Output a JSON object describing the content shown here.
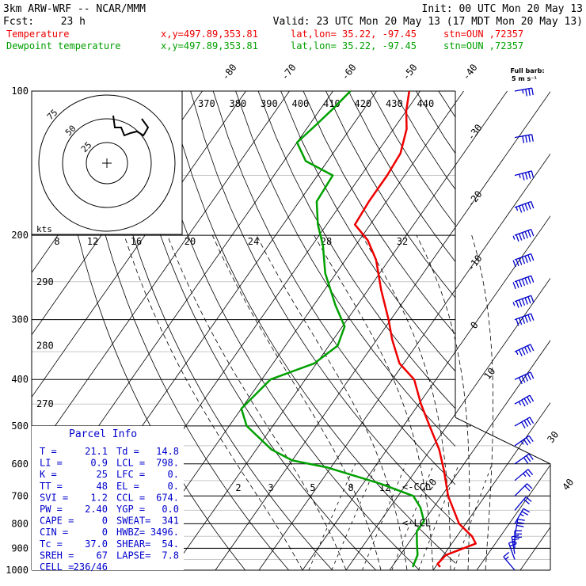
{
  "header": {
    "model": "3km ARW-WRF -- NCAR/MMM",
    "init": "Init: 00 UTC Mon 20 May 13",
    "fcst_label": "Fcst:",
    "fcst_value": "23 h",
    "valid": "Valid: 23 UTC Mon 20 May 13 (17 MDT Mon 20 May 13)",
    "temp_line": {
      "name": "Temperature",
      "xy": "x,y=497.89,353.81",
      "latlon": "lat,lon= 35.22, -97.45",
      "stn": "stn=OUN ,72357",
      "color": "#ee0000"
    },
    "dew_line": {
      "name": "Dewpoint temperature",
      "xy": "x,y=497.89,353.81",
      "latlon": "lat,lon= 35.22, -97.45",
      "stn": "stn=OUN ,72357",
      "color": "#00a000"
    }
  },
  "full_barb": {
    "line1": "Full barb:",
    "line2": "5 m s⁻¹"
  },
  "parcel_info": {
    "title": "Parcel Info",
    "rows": [
      [
        "T  =",
        "21.1",
        "Td =",
        "14.8"
      ],
      [
        "LI =",
        "0.9",
        "LCL =",
        "798."
      ],
      [
        "K  =",
        "25",
        "LFC =",
        "0."
      ],
      [
        "TT =",
        "48",
        "EL  =",
        "0."
      ],
      [
        "SVI =",
        "1.2",
        "CCL =",
        "674."
      ],
      [
        "PW =",
        "2.40",
        "YGP =",
        "0.0"
      ],
      [
        "CAPE =",
        "0",
        "SWEAT=",
        "341"
      ],
      [
        "CIN =",
        "0",
        "HWBZ=",
        "3496."
      ],
      [
        "Tc =",
        "37.0",
        "SHEAR=",
        "54."
      ],
      [
        "SREH =",
        "67",
        "LAPSE=",
        "7.8"
      ],
      [
        "CELL =",
        "236/46",
        "",
        ""
      ]
    ]
  },
  "hodograph": {
    "ring_labels": [
      "75",
      "50",
      "25"
    ],
    "units": "kts",
    "trace": [
      [
        8,
        -60
      ],
      [
        10,
        -45
      ],
      [
        18,
        -45
      ],
      [
        22,
        -35
      ],
      [
        30,
        -38
      ],
      [
        38,
        -40
      ],
      [
        46,
        -35
      ],
      [
        48,
        -38
      ],
      [
        52,
        -45
      ],
      [
        44,
        -56
      ]
    ]
  },
  "chart_data": {
    "type": "skew-T log-p sounding",
    "title": "",
    "y_axis": {
      "units": "hPa",
      "scale": "log",
      "range": [
        1000,
        100
      ],
      "ticks": [
        1000,
        900,
        800,
        700,
        600,
        500,
        400,
        300,
        200,
        100
      ]
    },
    "isotherm_labels": [
      -80,
      -70,
      -60,
      -50,
      -40,
      -30,
      -20,
      -10,
      0,
      10,
      20,
      30,
      40
    ],
    "dry_adiabat_labels": [
      370,
      380,
      390,
      400,
      410,
      420,
      430,
      440
    ],
    "dry_adiabat_left_labels": [
      {
        "label": "290",
        "p": 250
      },
      {
        "label": "280",
        "p": 340
      },
      {
        "label": "270",
        "p": 450
      }
    ],
    "upper_mixing_labels": [
      8,
      12,
      16,
      20,
      24,
      28,
      32
    ],
    "lower_mixing_labels": [
      2,
      3,
      5,
      8,
      12
    ],
    "annotations": [
      {
        "text": "<-CCL",
        "p": 670
      },
      {
        "text": "<-LCL",
        "p": 798
      }
    ],
    "series": [
      {
        "name": "Temperature",
        "color": "#ee0000",
        "points": [
          [
            985,
            21.1
          ],
          [
            970,
            20.0
          ],
          [
            930,
            20.5
          ],
          [
            880,
            25.5
          ],
          [
            850,
            23.5
          ],
          [
            800,
            18.5
          ],
          [
            700,
            11.5
          ],
          [
            620,
            6.5
          ],
          [
            560,
            2.0
          ],
          [
            500,
            -4.0
          ],
          [
            450,
            -9.5
          ],
          [
            400,
            -15.0
          ],
          [
            370,
            -21.0
          ],
          [
            330,
            -26.5
          ],
          [
            300,
            -30.5
          ],
          [
            260,
            -37.0
          ],
          [
            225,
            -43.0
          ],
          [
            205,
            -48.0
          ],
          [
            190,
            -53.5
          ],
          [
            170,
            -54.0
          ],
          [
            150,
            -54.0
          ],
          [
            135,
            -54.5
          ],
          [
            120,
            -57.0
          ],
          [
            110,
            -60.0
          ],
          [
            100,
            -62.5
          ]
        ]
      },
      {
        "name": "Dewpoint temperature",
        "color": "#00a000",
        "points": [
          [
            985,
            14.8
          ],
          [
            930,
            14.0
          ],
          [
            880,
            12.0
          ],
          [
            830,
            10.0
          ],
          [
            790,
            10.0
          ],
          [
            740,
            7.0
          ],
          [
            700,
            3.5
          ],
          [
            660,
            -6.0
          ],
          [
            610,
            -21.0
          ],
          [
            590,
            -30.0
          ],
          [
            560,
            -36.5
          ],
          [
            500,
            -46.0
          ],
          [
            460,
            -50.0
          ],
          [
            400,
            -48.0
          ],
          [
            370,
            -40.5
          ],
          [
            340,
            -38.0
          ],
          [
            310,
            -39.5
          ],
          [
            280,
            -45.0
          ],
          [
            240,
            -52.5
          ],
          [
            210,
            -57.5
          ],
          [
            190,
            -62.0
          ],
          [
            170,
            -66.0
          ],
          [
            150,
            -66.5
          ],
          [
            140,
            -75.0
          ],
          [
            128,
            -80.0
          ],
          [
            118,
            -78.5
          ],
          [
            108,
            -77.0
          ],
          [
            100,
            -76.0
          ]
        ]
      }
    ],
    "wind_profile_kts": [
      [
        1000,
        15,
        140
      ],
      [
        950,
        18,
        160
      ],
      [
        925,
        25,
        170
      ],
      [
        900,
        30,
        180
      ],
      [
        850,
        28,
        190
      ],
      [
        800,
        24,
        210
      ],
      [
        750,
        22,
        220
      ],
      [
        700,
        22,
        225
      ],
      [
        650,
        26,
        230
      ],
      [
        600,
        30,
        235
      ],
      [
        550,
        35,
        235
      ],
      [
        500,
        40,
        240
      ],
      [
        450,
        45,
        240
      ],
      [
        400,
        50,
        245
      ],
      [
        350,
        55,
        245
      ],
      [
        300,
        60,
        250
      ],
      [
        275,
        65,
        250
      ],
      [
        250,
        70,
        250
      ],
      [
        225,
        70,
        250
      ],
      [
        200,
        65,
        250
      ],
      [
        175,
        55,
        250
      ],
      [
        150,
        45,
        255
      ],
      [
        125,
        40,
        260
      ],
      [
        100,
        35,
        260
      ]
    ],
    "grid": true
  }
}
